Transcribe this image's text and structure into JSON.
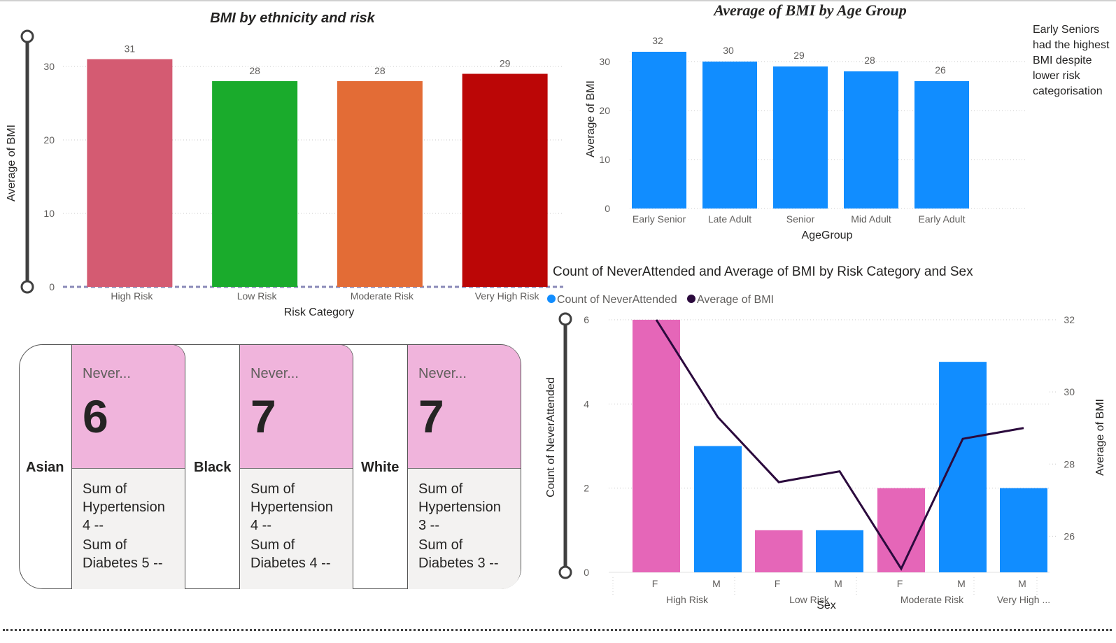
{
  "chart_data": [
    {
      "type": "bar",
      "title": "BMI by ethnicity and risk",
      "xlabel": "Risk Category",
      "ylabel": "Average of BMI",
      "categories": [
        "High Risk",
        "Low Risk",
        "Moderate Risk",
        "Very High Risk"
      ],
      "values": [
        31,
        28,
        28,
        29
      ],
      "data_labels": [
        "31",
        "28",
        "28",
        "29"
      ],
      "colors": [
        "#d45b72",
        "#1aab2c",
        "#e36c36",
        "#bb0606"
      ],
      "yticks": [
        0,
        10,
        20,
        30
      ],
      "ylim": [
        0,
        31
      ]
    },
    {
      "type": "bar",
      "title": "Average of BMI by Age Group",
      "xlabel": "AgeGroup",
      "ylabel": "Average of BMI",
      "categories": [
        "Early Senior",
        "Late Adult",
        "Senior",
        "Mid Adult",
        "Early Adult"
      ],
      "values": [
        32,
        30,
        29,
        28,
        26
      ],
      "data_labels": [
        "32",
        "30",
        "29",
        "28",
        "26"
      ],
      "color": "#118dff",
      "yticks": [
        0,
        10,
        20,
        30
      ],
      "ylim": [
        0,
        32
      ]
    },
    {
      "type": "bar",
      "title": "Count of NeverAttended and Average of BMI by Risk Category and Sex",
      "xlabel": "Sex",
      "ylabel": "Count of NeverAttended",
      "y2label": "Average of BMI",
      "legend": [
        {
          "name": "Count of NeverAttended",
          "color": "#118dff"
        },
        {
          "name": "Average of BMI",
          "color": "#2b0a3d"
        }
      ],
      "groups": [
        "High Risk",
        "Low Risk",
        "Moderate Risk",
        "Very High ..."
      ],
      "categories": [
        "F",
        "M",
        "F",
        "M",
        "F",
        "M",
        "M"
      ],
      "group_index": [
        0,
        0,
        1,
        1,
        2,
        2,
        3
      ],
      "bar_values": [
        6,
        3,
        1,
        1,
        2,
        5,
        2
      ],
      "bar_colors": [
        "#e566b8",
        "#118dff",
        "#e566b8",
        "#118dff",
        "#e566b8",
        "#118dff",
        "#118dff"
      ],
      "line_values": [
        32.0,
        29.3,
        27.5,
        27.8,
        25.1,
        28.7,
        29.0
      ],
      "yticks": [
        0,
        2,
        4,
        6
      ],
      "ylim": [
        0,
        6
      ],
      "y2ticks": [
        26,
        28,
        30,
        32
      ],
      "y2lim": [
        25,
        32
      ]
    }
  ],
  "note": "Early Seniors had the highest BMI despite lower risk categorisation",
  "cards": [
    {
      "label": "Asian",
      "title": "Never...",
      "value": "6",
      "lines": [
        "Sum of Hypertension 4 --",
        "Sum of Diabetes 5 --"
      ]
    },
    {
      "label": "Black",
      "title": "Never...",
      "value": "7",
      "lines": [
        "Sum of Hypertension 4 --",
        "Sum of Diabetes 4 --"
      ]
    },
    {
      "label": "White",
      "title": "Never...",
      "value": "7",
      "lines": [
        "Sum of Hypertension 3 --",
        "Sum of Diabetes 3 --"
      ]
    }
  ]
}
